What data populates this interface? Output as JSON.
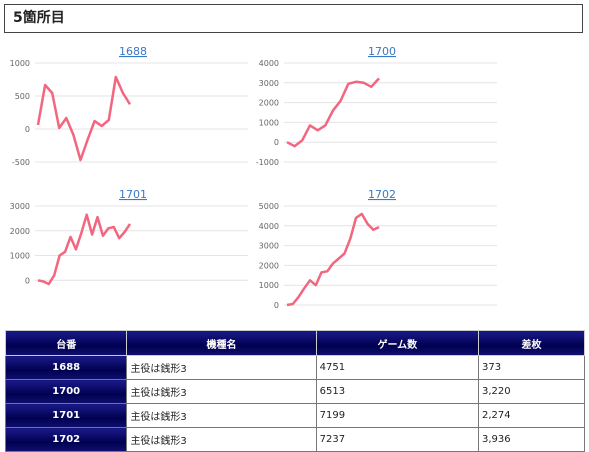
{
  "header": {
    "title": "5箇所目"
  },
  "chart_data": [
    {
      "type": "line",
      "title": "1688",
      "color": "#f2667f",
      "ylim": [
        -500,
        1000
      ],
      "yticks": [
        1000,
        500,
        0,
        -500
      ],
      "grid": true,
      "values": [
        60,
        667,
        545,
        15,
        167,
        -90,
        -470,
        -167,
        121,
        45,
        136,
        788,
        545,
        373
      ]
    },
    {
      "type": "line",
      "title": "1700",
      "color": "#f2667f",
      "ylim": [
        -1000,
        4000
      ],
      "yticks": [
        4000,
        3000,
        2000,
        1000,
        0,
        -1000
      ],
      "grid": true,
      "values": [
        0,
        -200,
        100,
        850,
        600,
        850,
        1600,
        2100,
        2950,
        3050,
        3000,
        2800,
        3220
      ]
    },
    {
      "type": "line",
      "title": "1701",
      "color": "#f2667f",
      "ylim": [
        -1000,
        3000
      ],
      "yticks": [
        3000,
        2000,
        1000,
        0
      ],
      "grid": true,
      "values": [
        0,
        -50,
        -150,
        200,
        1000,
        1150,
        1750,
        1250,
        1900,
        2650,
        1850,
        2550,
        1800,
        2100,
        2150,
        1700,
        1950,
        2274
      ]
    },
    {
      "type": "line",
      "title": "1702",
      "color": "#f2667f",
      "ylim": [
        0,
        5000
      ],
      "yticks": [
        5000,
        4000,
        3000,
        2000,
        1000,
        0
      ],
      "grid": true,
      "values": [
        0,
        50,
        400,
        850,
        1250,
        1000,
        1650,
        1700,
        2100,
        2350,
        2600,
        3350,
        4400,
        4600,
        4100,
        3800,
        3936
      ]
    }
  ],
  "table": {
    "columns": [
      "台番",
      "機種名",
      "ゲーム数",
      "差枚"
    ],
    "rows": [
      [
        "1688",
        "主役は銭形3",
        "4751",
        "373"
      ],
      [
        "1700",
        "主役は銭形3",
        "6513",
        "3,220"
      ],
      [
        "1701",
        "主役は銭形3",
        "7199",
        "2,274"
      ],
      [
        "1702",
        "主役は銭形3",
        "7237",
        "3,936"
      ]
    ]
  }
}
